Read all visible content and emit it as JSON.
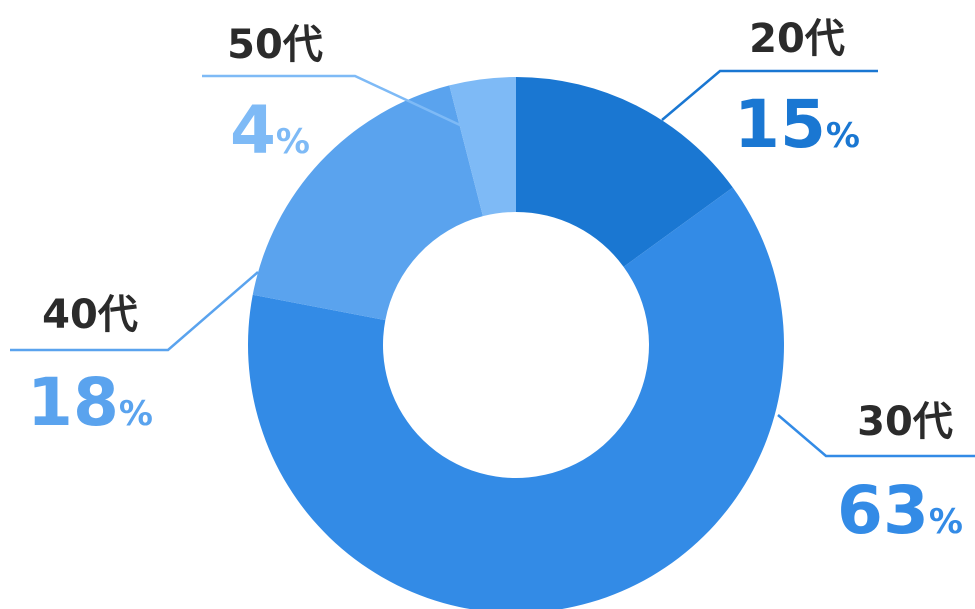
{
  "chart_data": {
    "type": "pie",
    "variant": "donut",
    "categories": [
      "20代",
      "30代",
      "40代",
      "50代"
    ],
    "values": [
      15,
      63,
      18,
      4
    ],
    "unit": "%",
    "colors": [
      "#1a77d2",
      "#338be6",
      "#5aa3ee",
      "#7ebaf6"
    ],
    "label_colors": [
      "#1a77d2",
      "#338be6",
      "#5aa3ee",
      "#7ebaf6"
    ],
    "title": "",
    "legend": "none"
  }
}
